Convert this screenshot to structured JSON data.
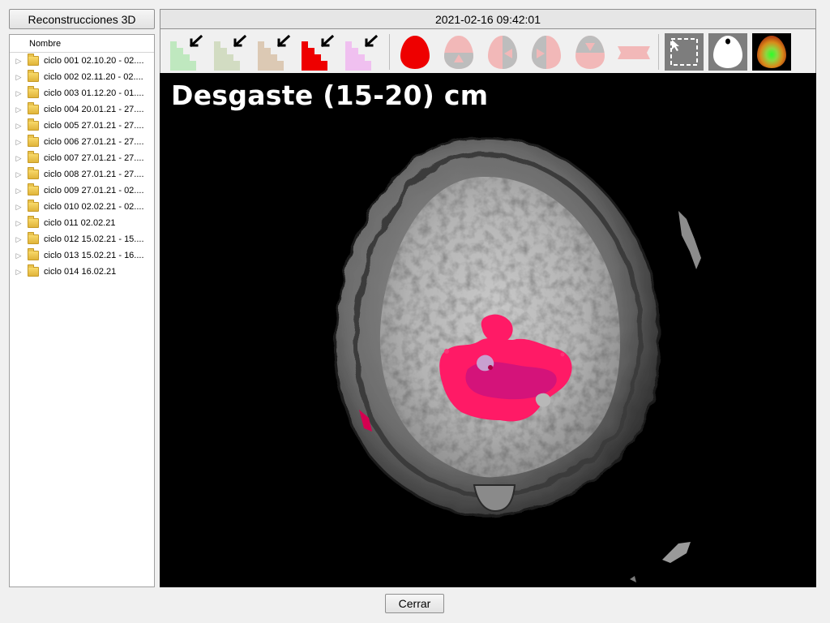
{
  "left_panel": {
    "title": "Reconstrucciones 3D"
  },
  "header": {
    "timestamp": "2021-02-16 09:42:01"
  },
  "tree": {
    "column_header": "Nombre",
    "items": [
      {
        "label": "ciclo 001 02.10.20 - 02...."
      },
      {
        "label": "ciclo 002 02.11.20 - 02...."
      },
      {
        "label": "ciclo 003 01.12.20 - 01...."
      },
      {
        "label": "ciclo 004 20.01.21 - 27...."
      },
      {
        "label": "ciclo 005 27.01.21 - 27...."
      },
      {
        "label": "ciclo 006 27.01.21 - 27...."
      },
      {
        "label": "ciclo 007 27.01.21 - 27...."
      },
      {
        "label": "ciclo 008 27.01.21 - 27...."
      },
      {
        "label": "ciclo 009 27.01.21 - 02...."
      },
      {
        "label": "ciclo 010 02.02.21 - 02...."
      },
      {
        "label": "ciclo 011 02.02.21"
      },
      {
        "label": "ciclo 012 15.02.21 - 15...."
      },
      {
        "label": "ciclo 013 15.02.21 - 16...."
      },
      {
        "label": "ciclo 014 16.02.21"
      }
    ]
  },
  "toolbar": {
    "layer_colors": [
      "#bfe8bf",
      "#d2dcc2",
      "#dcc9b4",
      "#ee0000",
      "#f0c0f0"
    ],
    "view_colors": {
      "active": "#ee0000",
      "inactive": "#f2b8b8",
      "gray": "#bdbdbd"
    }
  },
  "viewport": {
    "title": "Desgaste (15-20) cm"
  },
  "footer": {
    "close_label": "Cerrar"
  }
}
